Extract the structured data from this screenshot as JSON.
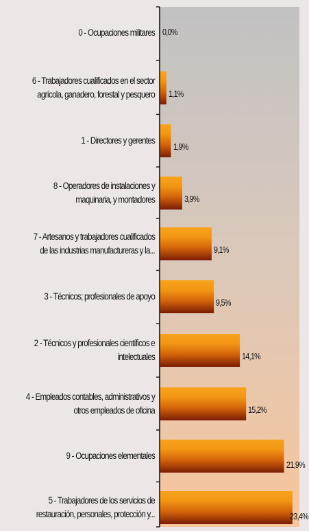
{
  "chart_data": {
    "type": "bar",
    "orientation": "horizontal",
    "categories": [
      "0 - Ocupaciones militares",
      "6 - Trabajadores cualificados en el sector agrícola, ganadero, forestal y pesquero",
      "1 - Directores y gerentes",
      "8 - Operadores de instalaciones y maquinaria, y montadores",
      "7 - Artesanos y trabajadores cualificados de las industrias manufactureras y la...",
      "3 - Técnicos; profesionales de apoyo",
      "2 - Técnicos y profesionales científicos e intelectuales",
      "4 - Empleados contables, administrativos y otros empleados de oficina",
      "9 - Ocupaciones elementales",
      "5 - Trabajadores de los servicios de restauración, personales, protección y..."
    ],
    "values": [
      0.0,
      1.1,
      1.9,
      3.9,
      9.1,
      9.5,
      14.1,
      15.2,
      21.9,
      23.4
    ],
    "value_labels": [
      "0,0%",
      "1,1%",
      "1,9%",
      "3,9%",
      "9,1%",
      "9,5%",
      "14,1%",
      "15,2%",
      "21,9%",
      "23,4%"
    ],
    "xlim": [
      0,
      25
    ],
    "unit": "%",
    "colors": {
      "bar_light": "#f9a31c",
      "bar_mid": "#d4640a",
      "bar_dark": "#7a1c05",
      "plot_bg_top": "#c2c2c2",
      "plot_bg_bottom": "#f8c69c",
      "page_bg": "#ece7e6"
    }
  }
}
